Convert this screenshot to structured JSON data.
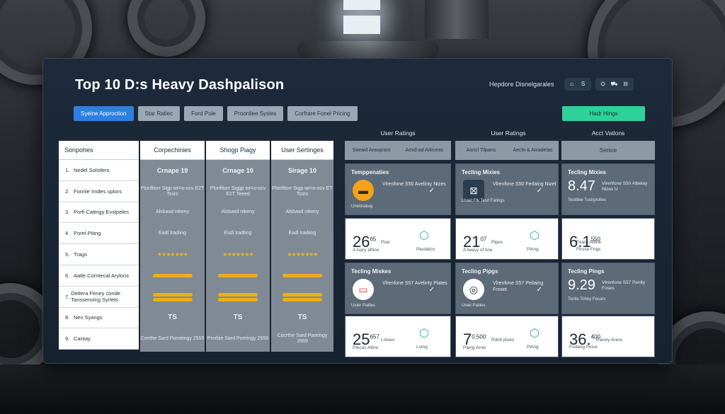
{
  "title": "Top 10 D:s Heavy Dashpalison",
  "header": {
    "label": "Hepdore Disnelgarales",
    "buttons": [
      "⌂",
      "S",
      "⛭",
      "⛟",
      "⊟"
    ]
  },
  "tabs": [
    "Syeine Approction",
    "Star Ratiec",
    "Ford Pole",
    "Proonliee Sysies",
    "Corfrare Fonel Pricing"
  ],
  "cta": "Hadr Hings",
  "table": {
    "name_header": "Sonpohes",
    "columns": [
      "Corpechinies",
      "Shogp Piagy",
      "User Sertinges"
    ],
    "rows": [
      "Nedel Solstlers",
      "Fonnle Imdes uplors",
      "Porfi Cattngy Evstpeles",
      "Porel Piting",
      "Trags",
      "Aatle Corntecal Arylons",
      "Detlera Feney conde Tanssenving Syrlets",
      "Nev Syangs",
      "Cantay"
    ],
    "row_numbers": [
      "1.",
      "2.",
      "3.",
      "4.",
      "5.",
      "6.",
      "7.",
      "8.",
      "9."
    ],
    "col1": {
      "title": "Crnape 19",
      "desc": "Plonfitorr Sigp wr=o-ocv E2T Tssrs",
      "r3": "Alsbasd nikeny",
      "r4": "Eadl Iradiing",
      "stars": "★★★★★★★",
      "ts": "TS",
      "footer": "Conthe Sard Porveingy 2559"
    },
    "col2": {
      "title": "Crnage 10",
      "desc": "Plonfitorr Siggp wr=o-ocv E2T Teeed",
      "r3": "Alsbasd nikeny",
      "r4": "Esdl Iradting",
      "stars": "★★★★★★★",
      "ts": "TS",
      "footer": "Prorbie Sard Poreingy 2559"
    },
    "col3": {
      "title": "Sirage 10",
      "desc": "Plonfitorr Sigp wr=o-ocv ET Tssrs",
      "r3": "Alsbasd nikeny",
      "r4": "Eadl Iradiing",
      "stars": "★★★★★★★",
      "ts": "TS",
      "footer": "Cocrthe Sard Pareingy 2559"
    }
  },
  "groups": [
    {
      "label": "User Ratings",
      "sub": [
        "Saeaid Aravprant",
        "Aexd-ad Aikiceas"
      ],
      "card1": {
        "title": "Temppenaties",
        "desc": "Vlrenfone S50 Avelinty Nizes",
        "foot": "Unetinatuig",
        "color": "#f5a31a",
        "glyph": "▬"
      },
      "card2": {
        "num": "26",
        "sup": "65",
        "caption": "A lvary aftine",
        "side": "Pise",
        "boxlbl": "Peclaticn"
      },
      "card3": {
        "title": "Tecling Miskes",
        "desc": "Vlrenfone S57 Avelinty Piates",
        "foot": "Uster Patiles",
        "color": "#d8322f",
        "glyph": "▭"
      },
      "card4": {
        "num": "25",
        "sup": "657",
        "caption": "Plecas Attne",
        "side": "Lstoes",
        "boxlbl": "Lstng"
      }
    },
    {
      "label": "User Ratings",
      "sub": [
        "Aoncl Tilpans",
        "Aeclo & Aixadelas"
      ],
      "card1": {
        "title": "Tecling Mixies",
        "desc": "Vlrenfone S50 Ferlaing Nizet",
        "foot": "Lhaet Ftk Tesrl Fatings",
        "color": "#2b3d50",
        "glyph": "⊠"
      },
      "card2": {
        "num": "21",
        "sup": "07",
        "caption": "A lwasy of tine",
        "side": "Pipes",
        "boxlbl": "Piring"
      },
      "card3": {
        "title": "Tecling Pipgs",
        "desc": "Vlrenfone S57 Peilaing Froset",
        "foot": "Uniel Patiles",
        "color": "#ffffff",
        "glyph": "◎"
      },
      "card4": {
        "num": "7",
        "sup": "0,500",
        "caption": "Paing Arrer",
        "side": "Pdutl plues",
        "boxlbl": "Piring"
      }
    },
    {
      "label": "Acct Vatlons",
      "sub": [
        "Senice"
      ],
      "card1": {
        "title": "Tecling Mixies",
        "stat": "8.47",
        "desc": "Vlrenfone S50 Atbelay Nizes U",
        "foot": "Tesitliee Tushprolies"
      },
      "card2": {
        "num": "6.1",
        "sup": "550",
        "caption": "Fearo Attine",
        "side": "Ftrsse Fngs",
        "boxlbl": ""
      },
      "card3": {
        "title": "Tecling Pings",
        "stat": "9.29",
        "desc": "Vlrenfone S57 Penlty Foses",
        "foot": "Tsnite Tohey Fecars"
      },
      "card4": {
        "num": "36.",
        "sup": "400",
        "caption": "Paivey Arere",
        "side": "Fodang Pkice",
        "boxlbl": ""
      }
    }
  ]
}
